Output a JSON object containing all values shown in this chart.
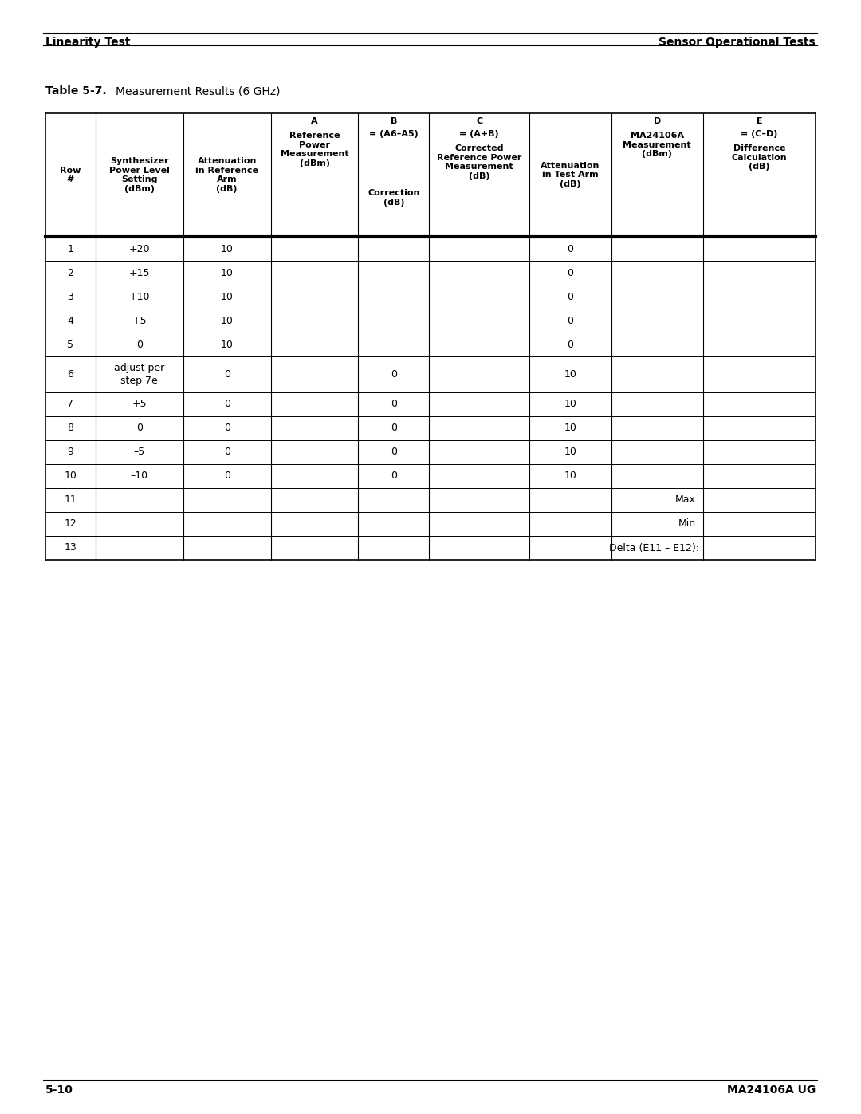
{
  "header_left": "Linearity Test",
  "header_right": "Sensor Operational Tests",
  "table_title": "Table 5-7.",
  "table_title_desc": "Measurement Results (6 GHz)",
  "footer_left": "5-10",
  "footer_right": "MA24106A UG",
  "rows": [
    [
      "1",
      "+20",
      "10",
      "",
      "",
      "",
      "0",
      "",
      ""
    ],
    [
      "2",
      "+15",
      "10",
      "",
      "",
      "",
      "0",
      "",
      ""
    ],
    [
      "3",
      "+10",
      "10",
      "",
      "",
      "",
      "0",
      "",
      ""
    ],
    [
      "4",
      "+5",
      "10",
      "",
      "",
      "",
      "0",
      "",
      ""
    ],
    [
      "5",
      "0",
      "10",
      "",
      "",
      "",
      "0",
      "",
      ""
    ],
    [
      "6",
      "adjust per\nstep 7e",
      "0",
      "",
      "0",
      "",
      "10",
      "",
      ""
    ],
    [
      "7",
      "+5",
      "0",
      "",
      "0",
      "",
      "10",
      "",
      ""
    ],
    [
      "8",
      "0",
      "0",
      "",
      "0",
      "",
      "10",
      "",
      ""
    ],
    [
      "9",
      "–5",
      "0",
      "",
      "0",
      "",
      "10",
      "",
      ""
    ],
    [
      "10",
      "–10",
      "0",
      "",
      "0",
      "",
      "10",
      "",
      ""
    ],
    [
      "11",
      "",
      "",
      "",
      "",
      "",
      "",
      "Max:",
      ""
    ],
    [
      "12",
      "",
      "",
      "",
      "",
      "",
      "",
      "Min:",
      ""
    ],
    [
      "13",
      "",
      "",
      "",
      "",
      "",
      "",
      "Delta (E11 – E12):",
      ""
    ]
  ],
  "background_color": "#ffffff",
  "text_color": "#000000"
}
